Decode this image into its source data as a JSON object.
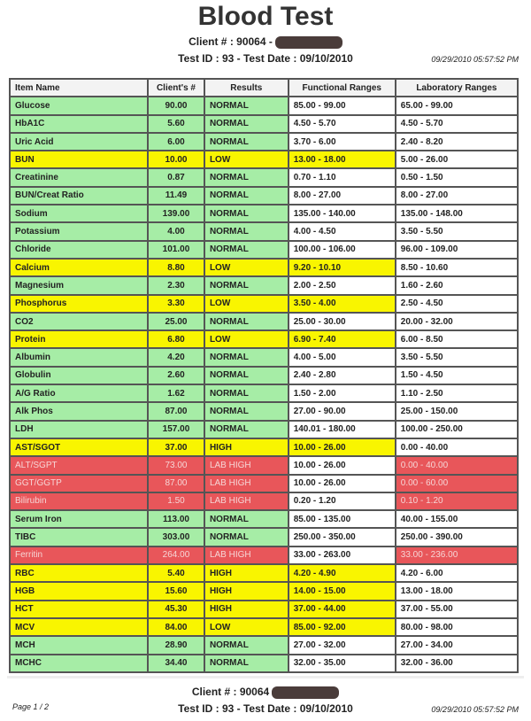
{
  "title": "Blood Test",
  "header": {
    "client": "Client # : 90064 -",
    "test": "Test ID : 93 - Test Date : 09/10/2010",
    "timestamp": "09/29/2010 05:57:52 PM"
  },
  "footer": {
    "client": "Client # : 90064",
    "test": "Test ID : 93 - Test Date : 09/10/2010",
    "timestamp": "09/29/2010 05:57:52 PM",
    "page": "Page 1 / 2"
  },
  "columns": [
    "Item Name",
    "Client's #",
    "Results",
    "Functional Ranges",
    "Laboratory Ranges"
  ],
  "colors": {
    "normal": "#a6eda6",
    "low_high": "#f9f500",
    "lab_high": "#e8565a"
  },
  "rows": [
    [
      "Glucose",
      "90.00",
      "NORMAL",
      "85.00 - 99.00",
      "65.00 - 99.00"
    ],
    [
      "HbA1C",
      "5.60",
      "NORMAL",
      "4.50 - 5.70",
      "4.50 - 5.70"
    ],
    [
      "Uric Acid",
      "6.00",
      "NORMAL",
      "3.70 - 6.00",
      "2.40 - 8.20"
    ],
    [
      "BUN",
      "10.00",
      "LOW",
      "13.00 - 18.00",
      "5.00 - 26.00"
    ],
    [
      "Creatinine",
      "0.87",
      "NORMAL",
      "0.70 - 1.10",
      "0.50 - 1.50"
    ],
    [
      "BUN/Creat Ratio",
      "11.49",
      "NORMAL",
      "8.00 - 27.00",
      "8.00 - 27.00"
    ],
    [
      "Sodium",
      "139.00",
      "NORMAL",
      "135.00 - 140.00",
      "135.00 - 148.00"
    ],
    [
      "Potassium",
      "4.00",
      "NORMAL",
      "4.00 - 4.50",
      "3.50 - 5.50"
    ],
    [
      "Chloride",
      "101.00",
      "NORMAL",
      "100.00 - 106.00",
      "96.00 - 109.00"
    ],
    [
      "Calcium",
      "8.80",
      "LOW",
      "9.20 - 10.10",
      "8.50 - 10.60"
    ],
    [
      "Magnesium",
      "2.30",
      "NORMAL",
      "2.00 - 2.50",
      "1.60 - 2.60"
    ],
    [
      "Phosphorus",
      "3.30",
      "LOW",
      "3.50 - 4.00",
      "2.50 - 4.50"
    ],
    [
      "CO2",
      "25.00",
      "NORMAL",
      "25.00 - 30.00",
      "20.00 - 32.00"
    ],
    [
      "Protein",
      "6.80",
      "LOW",
      "6.90 - 7.40",
      "6.00 - 8.50"
    ],
    [
      "Albumin",
      "4.20",
      "NORMAL",
      "4.00 - 5.00",
      "3.50 - 5.50"
    ],
    [
      "Globulin",
      "2.60",
      "NORMAL",
      "2.40 - 2.80",
      "1.50 - 4.50"
    ],
    [
      "A/G Ratio",
      "1.62",
      "NORMAL",
      "1.50 - 2.00",
      "1.10 - 2.50"
    ],
    [
      "Alk Phos",
      "87.00",
      "NORMAL",
      "27.00 - 90.00",
      "25.00 - 150.00"
    ],
    [
      "LDH",
      "157.00",
      "NORMAL",
      "140.01 - 180.00",
      "100.00 - 250.00"
    ],
    [
      "AST/SGOT",
      "37.00",
      "HIGH",
      "10.00 - 26.00",
      "0.00 - 40.00"
    ],
    [
      "ALT/SGPT",
      "73.00",
      "LAB HIGH",
      "10.00 - 26.00",
      "0.00 - 40.00"
    ],
    [
      "GGT/GGTP",
      "87.00",
      "LAB HIGH",
      "10.00 - 26.00",
      "0.00 - 60.00"
    ],
    [
      "Bilirubin",
      "1.50",
      "LAB HIGH",
      "0.20 - 1.20",
      "0.10 - 1.20"
    ],
    [
      "Serum Iron",
      "113.00",
      "NORMAL",
      "85.00 - 135.00",
      "40.00 - 155.00"
    ],
    [
      "TIBC",
      "303.00",
      "NORMAL",
      "250.00 - 350.00",
      "250.00 - 390.00"
    ],
    [
      "Ferritin",
      "264.00",
      "LAB HIGH",
      "33.00 - 263.00",
      "33.00 - 236.00"
    ],
    [
      "RBC",
      "5.40",
      "HIGH",
      "4.20 - 4.90",
      "4.20 - 6.00"
    ],
    [
      "HGB",
      "15.60",
      "HIGH",
      "14.00 - 15.00",
      "13.00 - 18.00"
    ],
    [
      "HCT",
      "45.30",
      "HIGH",
      "37.00 - 44.00",
      "37.00 - 55.00"
    ],
    [
      "MCV",
      "84.00",
      "LOW",
      "85.00 - 92.00",
      "80.00 - 98.00"
    ],
    [
      "MCH",
      "28.90",
      "NORMAL",
      "27.00 - 32.00",
      "27.00 - 34.00"
    ],
    [
      "MCHC",
      "34.40",
      "NORMAL",
      "32.00 - 35.00",
      "32.00 - 36.00"
    ]
  ]
}
